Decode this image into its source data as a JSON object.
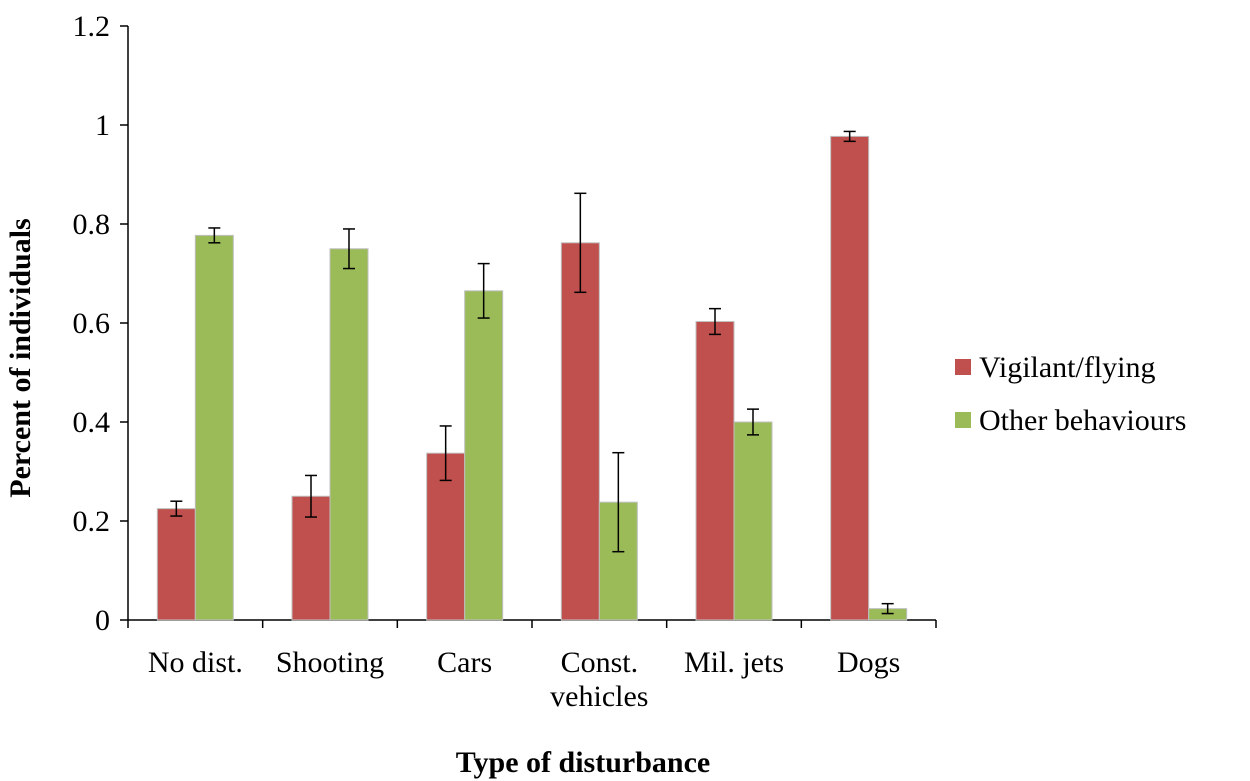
{
  "chart_data": {
    "type": "bar",
    "title": "",
    "xlabel": "Type of disturbance",
    "ylabel": "Percent of  individuals",
    "ylim": [
      0,
      1.2
    ],
    "yticks": [
      "0",
      "0.2",
      "0.4",
      "0.6",
      "0.8",
      "1",
      "1.2"
    ],
    "categories": [
      [
        "No dist."
      ],
      [
        "Shooting"
      ],
      [
        "Cars"
      ],
      [
        "Const.",
        "vehicles"
      ],
      [
        "Mil. jets"
      ],
      [
        "Dogs"
      ]
    ],
    "series": [
      {
        "name": "Vigilant/flying",
        "color": "#c0504d",
        "values": [
          0.225,
          0.25,
          0.337,
          0.762,
          0.603,
          0.977
        ],
        "errors": [
          0.015,
          0.042,
          0.055,
          0.1,
          0.026,
          0.01
        ]
      },
      {
        "name": "Other behaviours",
        "color": "#9bbb59",
        "values": [
          0.777,
          0.75,
          0.665,
          0.238,
          0.4,
          0.023
        ],
        "errors": [
          0.015,
          0.04,
          0.055,
          0.1,
          0.026,
          0.01
        ]
      }
    ],
    "grid": false,
    "legend": "right"
  }
}
